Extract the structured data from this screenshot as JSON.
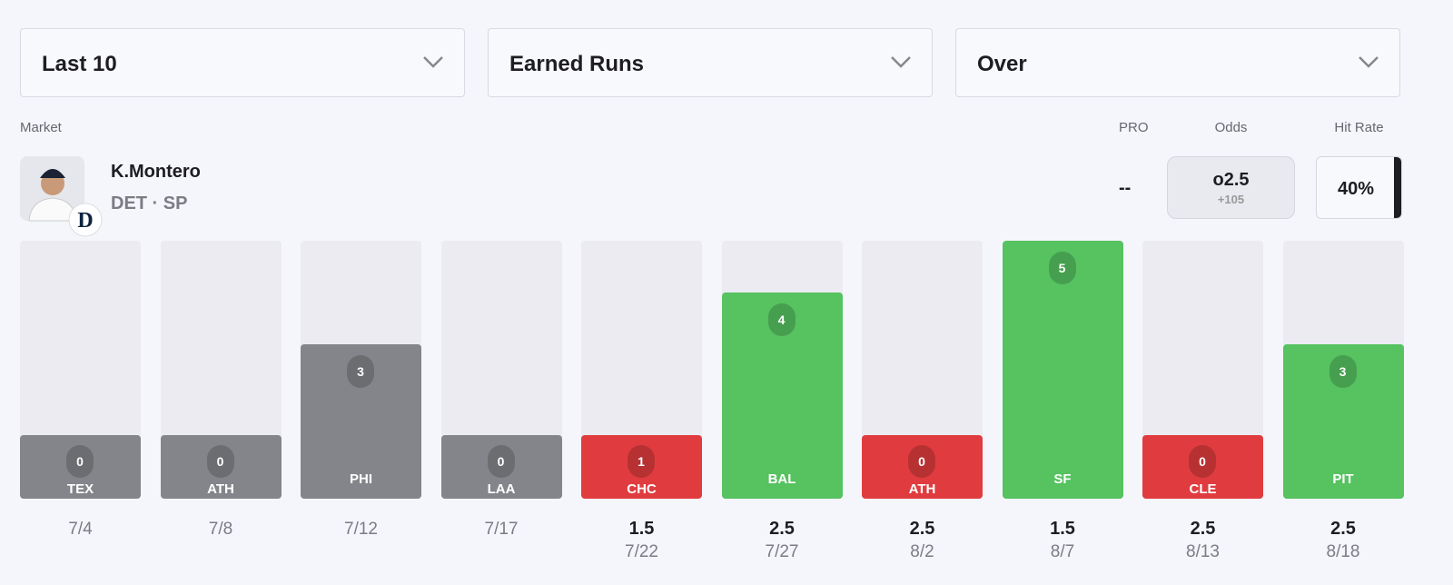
{
  "filters": [
    "Last 10",
    "Earned Runs",
    "Over"
  ],
  "market_label": "Market",
  "player": {
    "name": "K.Montero",
    "team_position": "DET · SP"
  },
  "columns": {
    "pro": "PRO",
    "odds": "Odds",
    "hit_rate": "Hit Rate"
  },
  "pro": "--",
  "odds": {
    "line": "o2.5",
    "price": "+105"
  },
  "hit_rate": "40%",
  "games": [
    {
      "opponent": "TEX",
      "value": 0,
      "line": null,
      "date": "7/4"
    },
    {
      "opponent": "ATH",
      "value": 0,
      "line": null,
      "date": "7/8"
    },
    {
      "opponent": "PHI",
      "value": 3,
      "line": null,
      "date": "7/12"
    },
    {
      "opponent": "LAA",
      "value": 0,
      "line": null,
      "date": "7/17"
    },
    {
      "opponent": "CHC",
      "value": 1,
      "line": 1.5,
      "date": "7/22"
    },
    {
      "opponent": "BAL",
      "value": 4,
      "line": 2.5,
      "date": "7/27"
    },
    {
      "opponent": "ATH",
      "value": 0,
      "line": 2.5,
      "date": "8/2"
    },
    {
      "opponent": "SF",
      "value": 5,
      "line": 1.5,
      "date": "8/7"
    },
    {
      "opponent": "CLE",
      "value": 0,
      "line": 2.5,
      "date": "8/13"
    },
    {
      "opponent": "PIT",
      "value": 3,
      "line": 2.5,
      "date": "8/18"
    }
  ]
}
